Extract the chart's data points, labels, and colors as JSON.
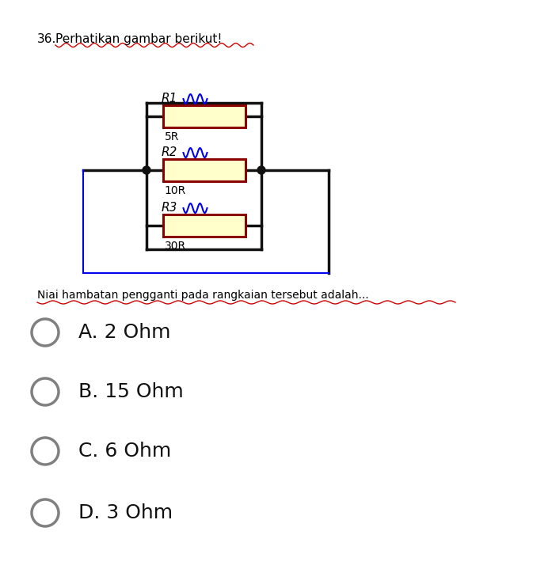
{
  "title_number": "36.",
  "title_text": "Perhatikan gambar berikut!",
  "question_text": "Niai hambatan pengganti pada rangkaian tersebut adalah...",
  "options": [
    "A. 2 Ohm",
    "B. 15 Ohm",
    "C. 6 Ohm",
    "D. 3 Ohm"
  ],
  "resistors": [
    {
      "label": "R1",
      "value": "5R"
    },
    {
      "label": "R2",
      "value": "10R"
    },
    {
      "label": "R3",
      "value": "30R"
    }
  ],
  "bg_color": "#ffffff",
  "wire_color": "#111111",
  "resistor_fill": "#ffffcc",
  "resistor_border": "#8B0000",
  "node_color": "#111111",
  "squiggle_color": "#0000ee",
  "title_color": "#000000",
  "question_underline_color": "#cc0000",
  "option_circle_color": "#808080",
  "option_text_color": "#111111"
}
